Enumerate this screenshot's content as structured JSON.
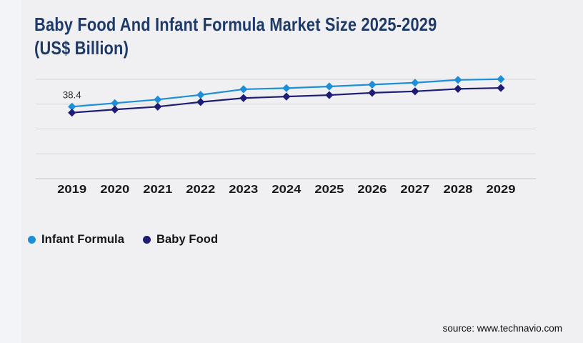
{
  "title": {
    "line1": "Baby Food And Infant Formula Market Size 2025-2029",
    "line2": "(US$ Billion)",
    "full": "Baby Food And Infant Formula Market Size 2025-2029 (US$ Billion)"
  },
  "legend": [
    {
      "label": "Infant Formula",
      "color": "#1d8fd6"
    },
    {
      "label": "Baby Food",
      "color": "#1f1c74"
    }
  ],
  "source": "source: www.technavio.com",
  "colors": {
    "title": "#1e3a68",
    "gridline": "#d6d6d9",
    "axis_line": "#c3c3c8",
    "tick_label": "#191919",
    "annotation": "#2e2e2e",
    "infant_formula": "#1d8fd6",
    "baby_food": "#1f1c74",
    "background_left": "#f3f4f8",
    "background_panel": "#f0f0f2"
  },
  "chart_data": {
    "type": "line",
    "title": "Baby Food And Infant Formula Market Size 2025-2029 (US$ Billion)",
    "xlabel": "",
    "ylabel": "US$ Billion",
    "x": [
      "2019",
      "2020",
      "2021",
      "2022",
      "2023",
      "2024",
      "2025",
      "2026",
      "2027",
      "2028",
      "2029"
    ],
    "series": [
      {
        "id": "infant-formula",
        "name": "Infant Formula",
        "color": "#1d8fd6",
        "marker": "diamond",
        "values": [
          38.4,
          40.3,
          42.2,
          44.7,
          47.7,
          48.3,
          49.2,
          50.2,
          51.2,
          52.7,
          53.1
        ]
      },
      {
        "id": "baby-food",
        "name": "Baby Food",
        "color": "#1f1c74",
        "marker": "diamond",
        "values": [
          35.2,
          36.9,
          38.4,
          40.9,
          43.0,
          43.8,
          44.6,
          45.8,
          46.6,
          47.9,
          48.4
        ]
      }
    ],
    "annotations": [
      {
        "series": "Infant Formula",
        "x": "2019",
        "text": "38.4"
      }
    ],
    "ylim": [
      0,
      55
    ],
    "y_axis_labels_visible": false,
    "grid": true,
    "gridline_count": 5,
    "legend_position": "bottom-left"
  }
}
